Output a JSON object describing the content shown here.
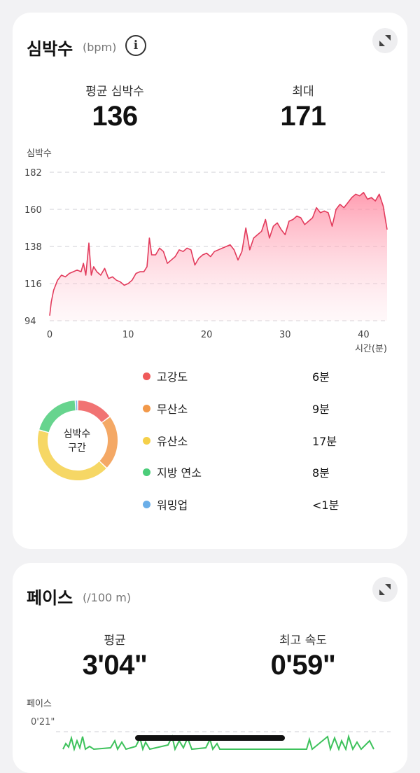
{
  "heart_rate_card": {
    "title": "심박수",
    "unit": "(bpm)",
    "info_icon": "info-icon",
    "expand_icon": "expand-icon",
    "average_label": "평균 심박수",
    "average_value": "136",
    "max_label": "최대",
    "max_value": "171"
  },
  "zones": {
    "donut_label_line1": "심박수",
    "donut_label_line2": "구간",
    "items": [
      {
        "name": "고강도",
        "time": "6분",
        "color": "#ef5a5a"
      },
      {
        "name": "무산소",
        "time": "9분",
        "color": "#f2994a"
      },
      {
        "name": "유산소",
        "time": "17분",
        "color": "#f5d04a"
      },
      {
        "name": "지방 연소",
        "time": "8분",
        "color": "#4ccd7a"
      },
      {
        "name": "워밍업",
        "time": "<1분",
        "color": "#6aaee8"
      }
    ]
  },
  "pace_card": {
    "title": "페이스",
    "unit": "(/100 m)",
    "expand_icon": "expand-icon",
    "average_label": "평균",
    "average_value": "3'04\"",
    "best_label": "최고 속도",
    "best_value": "0'59\"",
    "y_title": "페이스",
    "top_tick": "0'21\""
  },
  "chart_data": [
    {
      "type": "area",
      "title": "",
      "ylabel": "심박수",
      "xlabel": "시간(분)",
      "xlim": [
        0,
        43
      ],
      "ylim": [
        94,
        182
      ],
      "x_ticks": [
        0,
        10,
        20,
        30,
        40
      ],
      "y_ticks": [
        94,
        116,
        138,
        160,
        182
      ],
      "grid": "horizontal dashed",
      "series": [
        {
          "x": [
            0,
            0.2,
            0.5,
            1,
            1.5,
            2,
            2.5,
            3,
            3.5,
            4,
            4.3,
            4.6,
            5,
            5.3,
            5.6,
            6,
            6.5,
            7,
            7.5,
            8,
            8.5,
            9,
            9.5,
            10,
            10.5,
            11,
            11.5,
            12,
            12.4,
            12.7,
            13,
            13.5,
            14,
            14.5,
            15,
            15.5,
            16,
            16.5,
            17,
            17.5,
            18,
            18.5,
            19,
            19.5,
            20,
            20.5,
            21,
            21.5,
            22,
            22.5,
            23,
            23.5,
            24,
            24.5,
            25,
            25.5,
            26,
            26.5,
            27,
            27.5,
            28,
            28.5,
            29,
            29.5,
            30,
            30.5,
            31,
            31.5,
            32,
            32.5,
            33,
            33.5,
            34,
            34.5,
            35,
            35.5,
            36,
            36.5,
            37,
            37.5,
            38,
            38.5,
            39,
            39.5,
            40,
            40.5,
            41,
            41.5,
            42,
            42.5,
            43
          ],
          "y": [
            97,
            105,
            112,
            118,
            121,
            120,
            122,
            123,
            124,
            123,
            128,
            121,
            140,
            121,
            126,
            123,
            121,
            125,
            119,
            120,
            118,
            117,
            115,
            116,
            118,
            122,
            123,
            123,
            126,
            143,
            133,
            133,
            137,
            135,
            128,
            130,
            132,
            136,
            135,
            137,
            136,
            127,
            131,
            133,
            134,
            132,
            135,
            136,
            137,
            138,
            139,
            136,
            130,
            135,
            149,
            136,
            143,
            145,
            147,
            154,
            143,
            150,
            152,
            148,
            145,
            153,
            154,
            156,
            155,
            151,
            153,
            155,
            161,
            158,
            159,
            158,
            150,
            160,
            163,
            161,
            164,
            167,
            169,
            168,
            170,
            166,
            167,
            165,
            169,
            162,
            148
          ]
        }
      ]
    },
    {
      "type": "pie",
      "title": "심박수 구간",
      "categories": [
        "고강도",
        "무산소",
        "유산소",
        "지방 연소",
        "워밍업"
      ],
      "values": [
        6,
        9,
        17,
        8,
        0.4
      ]
    }
  ]
}
